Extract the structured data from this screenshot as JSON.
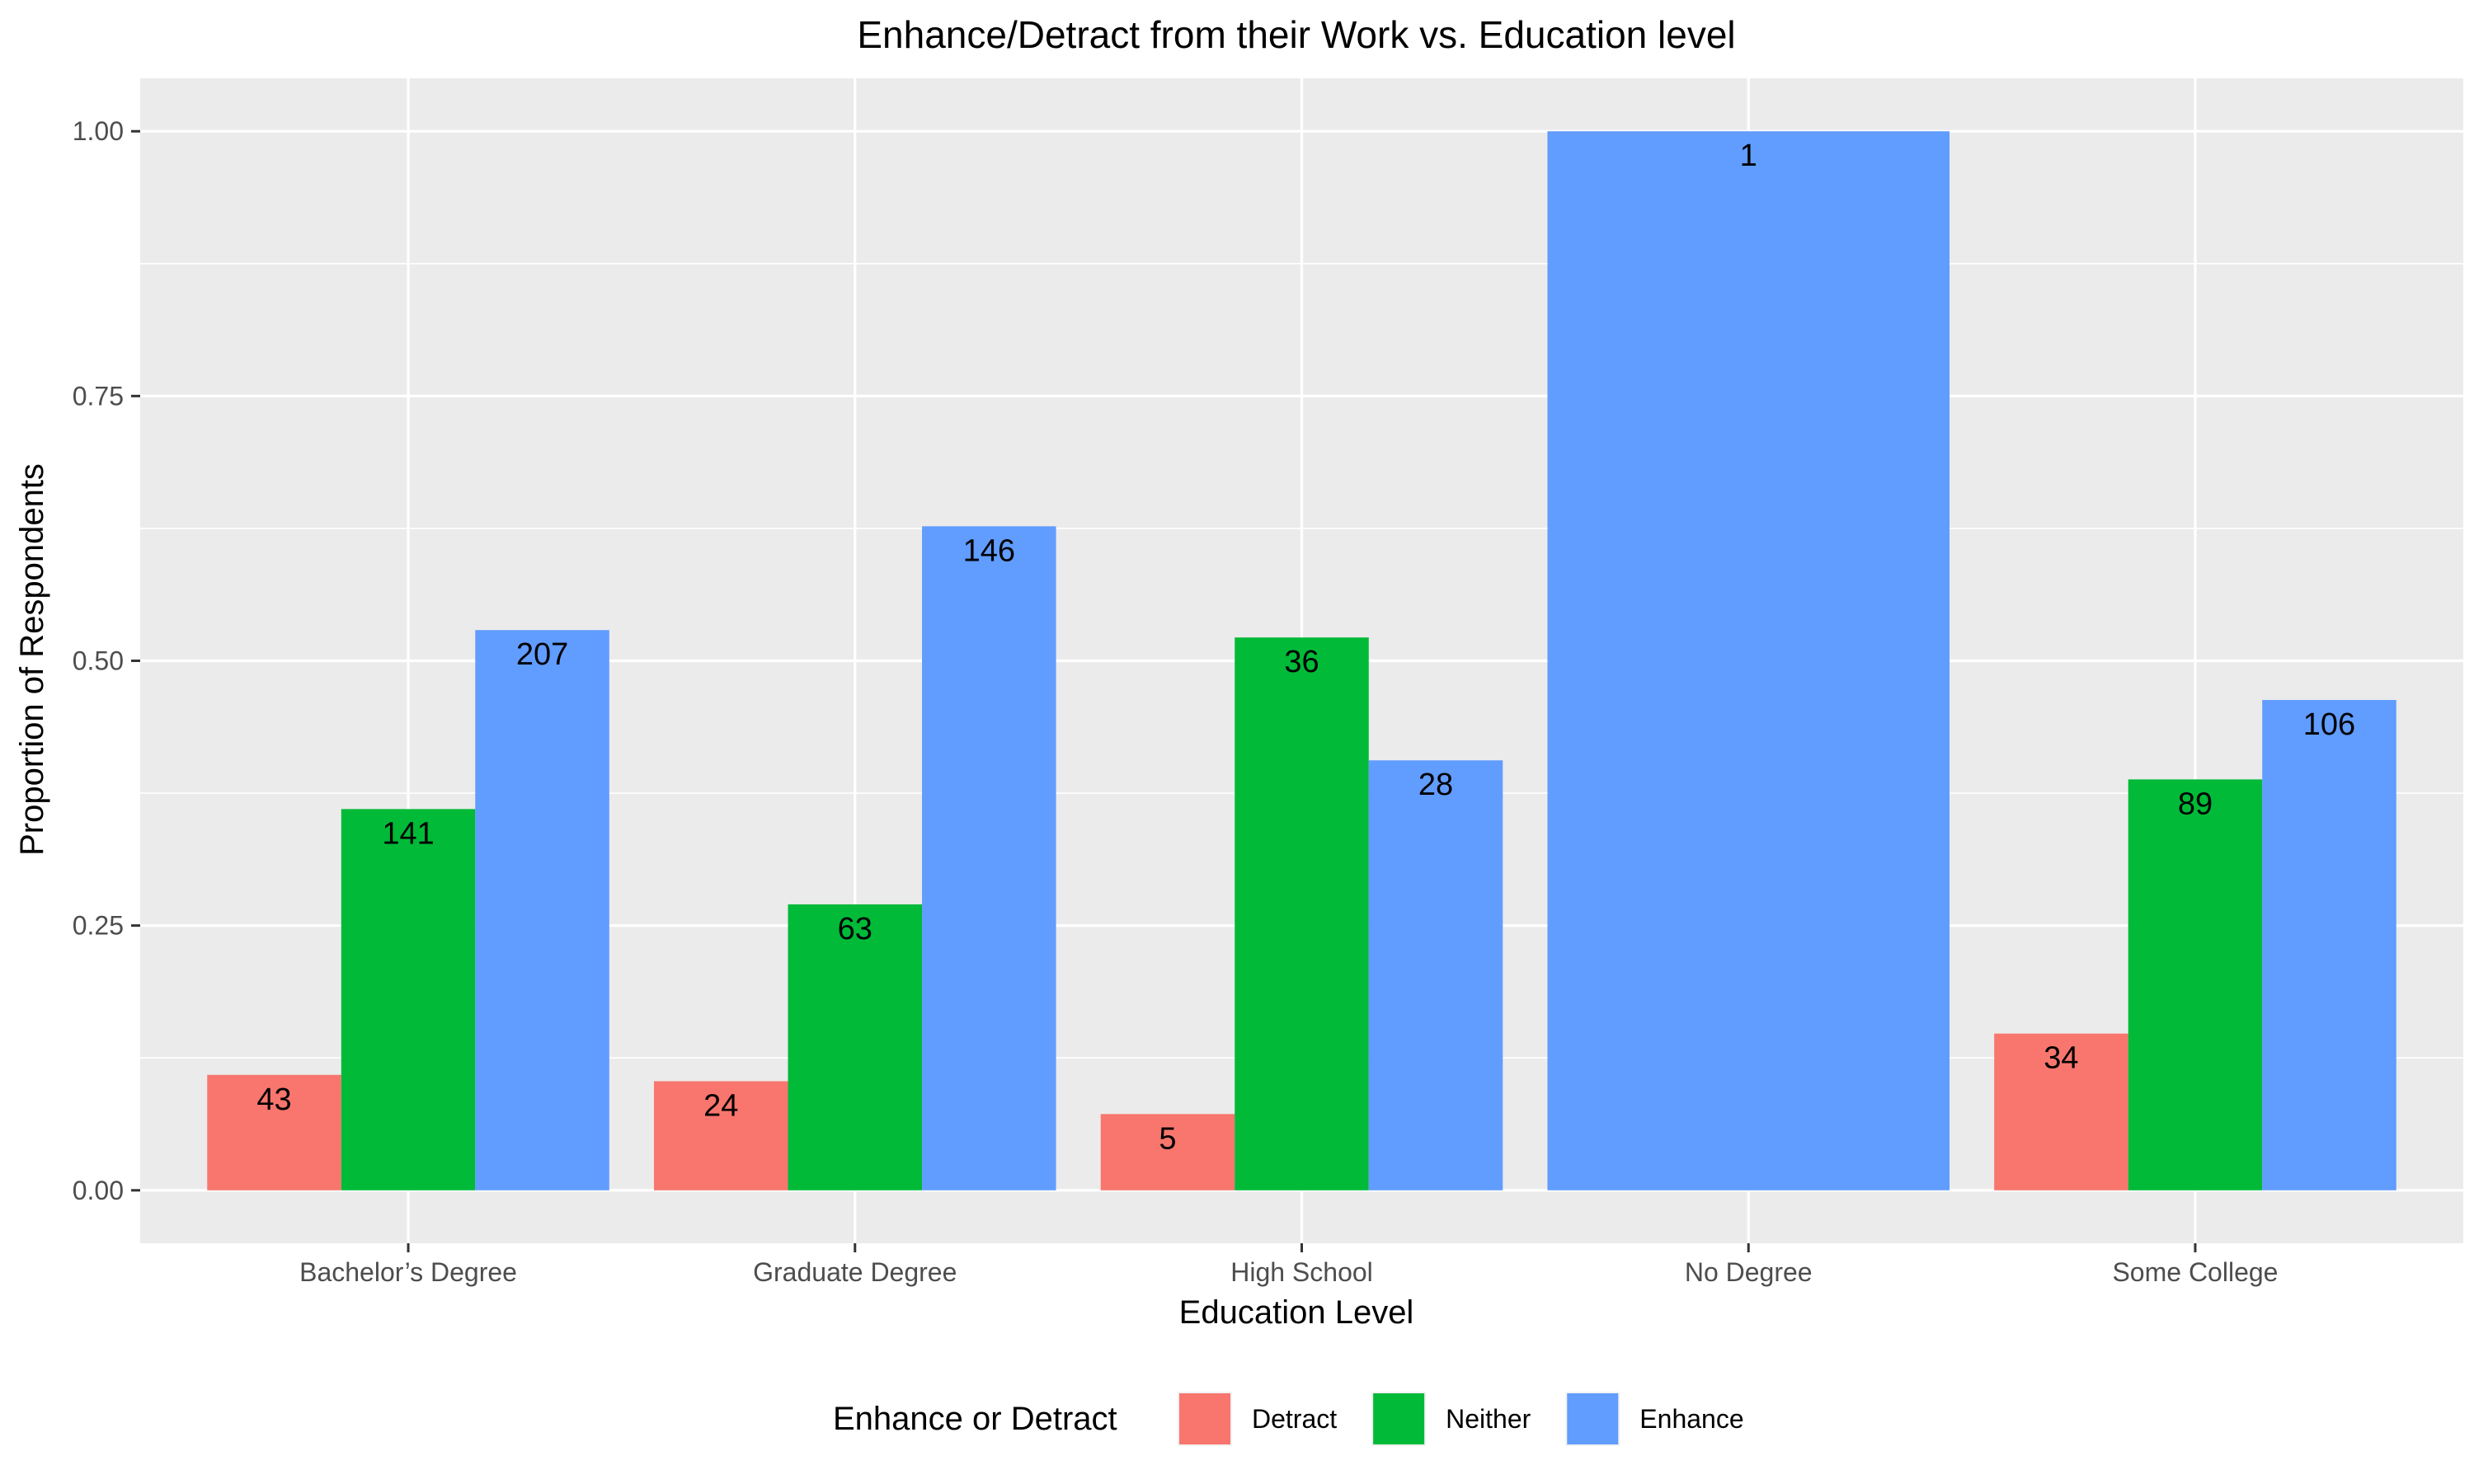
{
  "chart_data": {
    "type": "bar",
    "title": "Enhance/Detract from their Work vs. Education level",
    "xlabel": "Education Level",
    "ylabel": "Proportion of Respondents",
    "categories": [
      "Bachelor’s Degree",
      "Graduate Degree",
      "High School",
      "No Degree",
      "Some College"
    ],
    "series": [
      {
        "name": "Detract",
        "color": "#F8766D",
        "values": [
          0.109,
          0.103,
          0.072,
          null,
          0.148
        ],
        "labels": [
          "43",
          "24",
          "5",
          null,
          "34"
        ]
      },
      {
        "name": "Neither",
        "color": "#00BA38",
        "values": [
          0.36,
          0.27,
          0.522,
          null,
          0.388
        ],
        "labels": [
          "141",
          "63",
          "36",
          null,
          "89"
        ]
      },
      {
        "name": "Enhance",
        "color": "#619CFF",
        "values": [
          0.529,
          0.627,
          0.406,
          1.0,
          0.463
        ],
        "labels": [
          "207",
          "146",
          "28",
          "1",
          "106"
        ]
      }
    ],
    "ylim": [
      -0.05,
      1.05
    ],
    "yticks": [
      0.0,
      0.25,
      0.5,
      0.75,
      1.0
    ],
    "ytick_labels": [
      "0.00",
      "0.25",
      "0.50",
      "0.75",
      "1.00"
    ],
    "grid": true,
    "legend": {
      "title": "Enhance or Detract",
      "position": "bottom",
      "items": [
        "Detract",
        "Neither",
        "Enhance"
      ]
    },
    "colors": {
      "panel_background": "#EBEBEB",
      "grid_major": "#FFFFFF",
      "axis_text": "#4D4D4D",
      "text": "#000000"
    }
  }
}
